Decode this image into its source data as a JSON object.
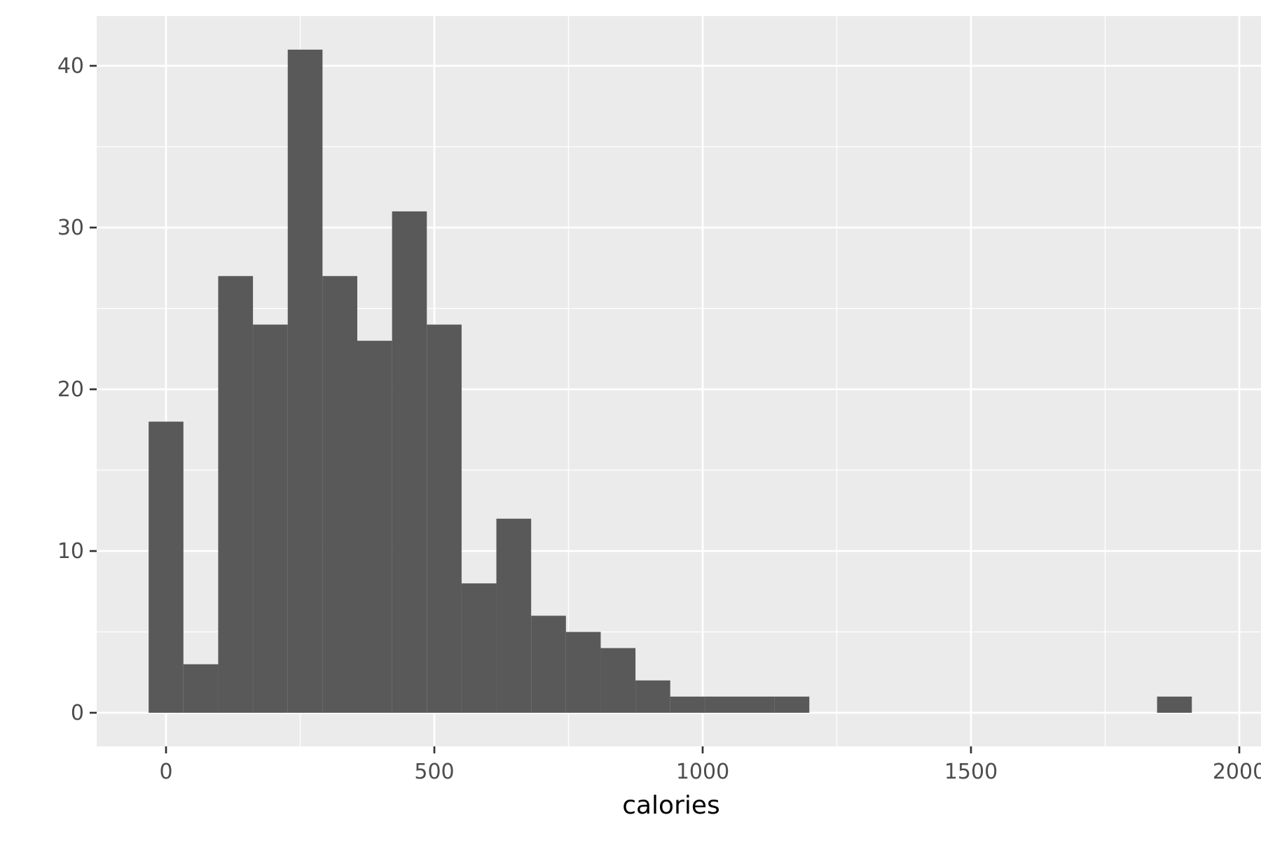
{
  "chart_data": {
    "type": "bar",
    "title": "",
    "xlabel": "calories",
    "ylabel": "",
    "colors": {
      "panel_background": "#ebebeb",
      "grid": "#ffffff",
      "bar_fill": "#595959",
      "tick_text": "#4d4d4d",
      "axis_title": "#000000"
    },
    "grid": true,
    "xlim": [
      -130,
      2000
    ],
    "ylim": [
      -2,
      43
    ],
    "x_ticks": [
      {
        "value": 0,
        "label": "0"
      },
      {
        "value": 500,
        "label": "500"
      },
      {
        "value": 1000,
        "label": "1000"
      },
      {
        "value": 1500,
        "label": "1500"
      },
      {
        "value": 2000,
        "label": "2000"
      }
    ],
    "y_ticks": [
      {
        "value": 0,
        "label": "0"
      },
      {
        "value": 10,
        "label": "10"
      },
      {
        "value": 20,
        "label": "20"
      },
      {
        "value": 30,
        "label": "30"
      },
      {
        "value": 40,
        "label": "40"
      }
    ],
    "bin_width": 64.8,
    "bins": [
      {
        "start": -32.4,
        "end": 32.4,
        "count": 18
      },
      {
        "start": 32.4,
        "end": 97.2,
        "count": 3
      },
      {
        "start": 97.2,
        "end": 162.0,
        "count": 27
      },
      {
        "start": 162.0,
        "end": 226.8,
        "count": 24
      },
      {
        "start": 226.8,
        "end": 291.6,
        "count": 41
      },
      {
        "start": 291.6,
        "end": 356.4,
        "count": 27
      },
      {
        "start": 356.4,
        "end": 421.2,
        "count": 23
      },
      {
        "start": 421.2,
        "end": 486.0,
        "count": 31
      },
      {
        "start": 486.0,
        "end": 550.8,
        "count": 24
      },
      {
        "start": 550.8,
        "end": 615.6,
        "count": 8
      },
      {
        "start": 615.6,
        "end": 680.4,
        "count": 12
      },
      {
        "start": 680.4,
        "end": 745.2,
        "count": 6
      },
      {
        "start": 745.2,
        "end": 810.0,
        "count": 5
      },
      {
        "start": 810.0,
        "end": 874.8,
        "count": 4
      },
      {
        "start": 874.8,
        "end": 939.6,
        "count": 2
      },
      {
        "start": 939.6,
        "end": 1004.4,
        "count": 1
      },
      {
        "start": 1004.4,
        "end": 1069.2,
        "count": 1
      },
      {
        "start": 1069.2,
        "end": 1134.0,
        "count": 1
      },
      {
        "start": 1134.0,
        "end": 1198.8,
        "count": 1
      },
      {
        "start": 1198.8,
        "end": 1263.6,
        "count": 0
      },
      {
        "start": 1263.6,
        "end": 1328.4,
        "count": 0
      },
      {
        "start": 1328.4,
        "end": 1393.2,
        "count": 0
      },
      {
        "start": 1393.2,
        "end": 1458.0,
        "count": 0
      },
      {
        "start": 1458.0,
        "end": 1522.8,
        "count": 0
      },
      {
        "start": 1522.8,
        "end": 1587.6,
        "count": 0
      },
      {
        "start": 1587.6,
        "end": 1652.4,
        "count": 0
      },
      {
        "start": 1652.4,
        "end": 1717.2,
        "count": 0
      },
      {
        "start": 1717.2,
        "end": 1782.0,
        "count": 0
      },
      {
        "start": 1782.0,
        "end": 1846.8,
        "count": 0
      },
      {
        "start": 1846.8,
        "end": 1911.6,
        "count": 1
      }
    ]
  }
}
